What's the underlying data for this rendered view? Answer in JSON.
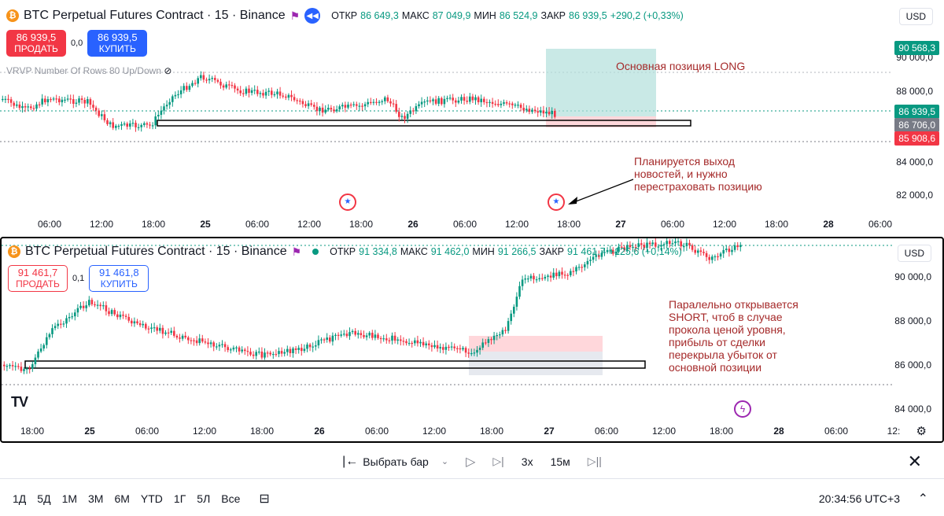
{
  "pane1": {
    "title": "BTC Perpetual Futures Contract · 15 · Binance",
    "coin_icon": "₿",
    "ohlc": {
      "o_label": "ОТКР",
      "o": "86 649,3",
      "h_label": "МАКС",
      "h": "87 049,9",
      "l_label": "МИН",
      "l": "86 524,9",
      "c_label": "ЗАКР",
      "c": "86 939,5",
      "chg": "+290,2 (+0,33%)"
    },
    "sell": {
      "price": "86 939,5",
      "label": "ПРОДАТЬ"
    },
    "spread": "0,0",
    "buy": {
      "price": "86 939,5",
      "label": "КУПИТЬ"
    },
    "indicator": "VRVP Number Of Rows 80 Up/Down",
    "currency": "USD",
    "price_axis": [
      "90 000,0",
      "88 000,0",
      "84 000,0",
      "82 000,0"
    ],
    "tags": {
      "target": "90 568,3",
      "last": "86 939,5",
      "entry": "86 706,0",
      "stop": "85 908,6"
    },
    "time_axis": [
      "06:00",
      "12:00",
      "18:00",
      "25",
      "06:00",
      "12:00",
      "18:00",
      "26",
      "06:00",
      "12:00",
      "18:00",
      "27",
      "06:00",
      "12:00",
      "18:00",
      "28",
      "06:00"
    ],
    "note_long": "Основная позиция LONG",
    "note_news": [
      "Планируется выход",
      "новостей, и нужно",
      "перестраховать позицию"
    ]
  },
  "pane2": {
    "title": "BTC Perpetual Futures Contract · 15 · Binance",
    "coin_icon": "₿",
    "ohlc": {
      "o_label": "ОТКР",
      "o": "91 334,8",
      "h_label": "МАКС",
      "h": "91 462,0",
      "l_label": "МИН",
      "l": "91 266,5",
      "c_label": "ЗАКР",
      "c": "91 461,7",
      "chg": "+125,6 (+0,14%)"
    },
    "sell": {
      "price": "91 461,7",
      "label": "ПРОДАТЬ"
    },
    "spread": "0,1",
    "buy": {
      "price": "91 461,8",
      "label": "КУПИТЬ"
    },
    "currency": "USD",
    "price_axis": [
      "90 000,0",
      "88 000,0",
      "86 000,0",
      "84 000,0"
    ],
    "time_axis": [
      "18:00",
      "25",
      "06:00",
      "12:00",
      "18:00",
      "26",
      "06:00",
      "12:00",
      "18:00",
      "27",
      "06:00",
      "12:00",
      "18:00",
      "28",
      "06:00",
      "12:"
    ],
    "logo": "TV",
    "note_short": [
      "Паралельно открывается",
      "SHORT, чтоб в случае",
      "прокола ценой уровня,",
      "прибыль от сделки",
      "перекрыла убыток от",
      "основной позиции"
    ]
  },
  "replay": {
    "select_bar": "Выбрать бар",
    "speed": "3x",
    "interval": "15м"
  },
  "footer": {
    "timeframes": [
      "1Д",
      "5Д",
      "1М",
      "3М",
      "6М",
      "YTD",
      "1Г",
      "5Л",
      "Все"
    ],
    "clock": "20:34:56 UTC+3"
  },
  "colors": {
    "up": "#089981",
    "down": "#f23645",
    "accent": "#2962ff",
    "note": "#a52a2a",
    "target_zone": "#b2dfdb",
    "stop_zone": "#ffcdd2"
  }
}
